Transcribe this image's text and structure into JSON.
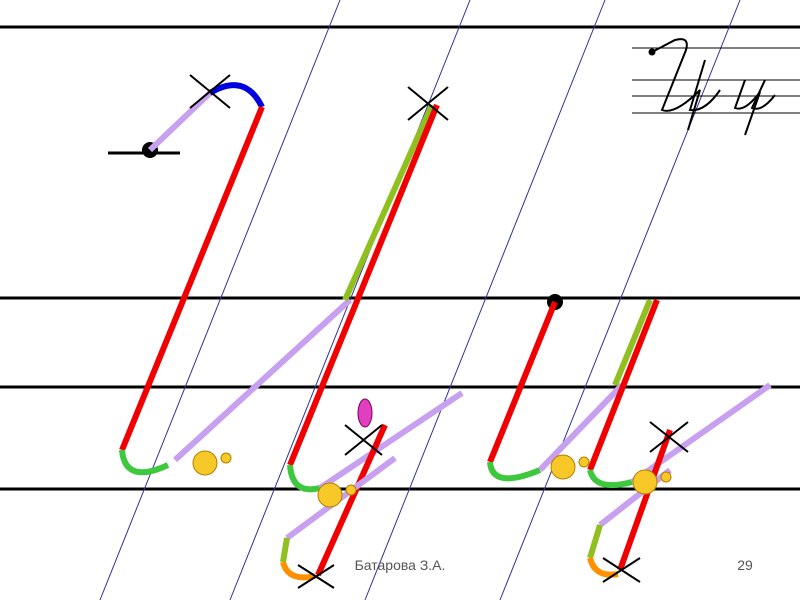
{
  "footer": {
    "author": "Батарова З.А.",
    "page_number": "29"
  }
}
